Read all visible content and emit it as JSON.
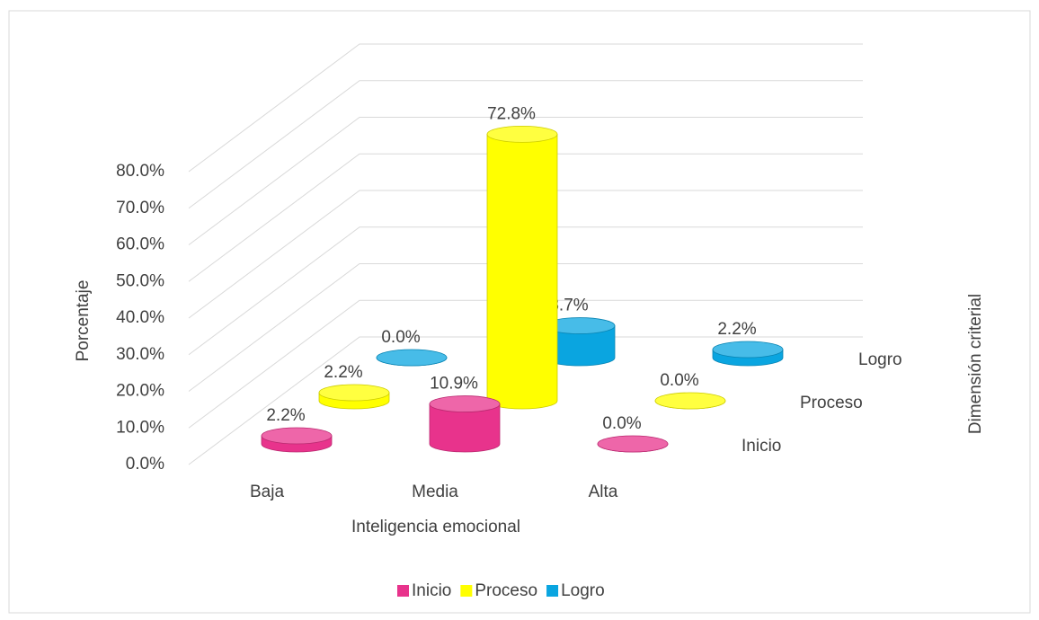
{
  "chart_data": {
    "type": "bar3d",
    "x_label": "Inteligencia emocional",
    "y_label": "Porcentaje",
    "z_label": "Dimensión criterial",
    "categories": [
      "Baja",
      "Media",
      "Alta"
    ],
    "series": [
      {
        "name": "Inicio",
        "color": "#e8338c",
        "values": [
          2.2,
          10.9,
          0.0
        ],
        "value_labels": [
          "2.2%",
          "10.9%",
          "0.0%"
        ]
      },
      {
        "name": "Proceso",
        "color": "#ffff00",
        "values": [
          2.2,
          72.8,
          0.0
        ],
        "value_labels": [
          "2.2%",
          "72.8%",
          "0.0%"
        ]
      },
      {
        "name": "Logro",
        "color": "#0aa5e0",
        "values": [
          0.0,
          8.7,
          2.2
        ],
        "value_labels": [
          "0.0%",
          "8.7%",
          "2.2%"
        ]
      }
    ],
    "ylim": [
      0,
      80
    ],
    "yticks": [
      {
        "value": 0,
        "label": "0.0%"
      },
      {
        "value": 10,
        "label": "10.0%"
      },
      {
        "value": 20,
        "label": "20.0%"
      },
      {
        "value": 30,
        "label": "30.0%"
      },
      {
        "value": 40,
        "label": "40.0%"
      },
      {
        "value": 50,
        "label": "50.0%"
      },
      {
        "value": 60,
        "label": "60.0%"
      },
      {
        "value": 70,
        "label": "70.0%"
      },
      {
        "value": 80,
        "label": "80.0%"
      }
    ],
    "grid": true,
    "legend": "bottom"
  }
}
